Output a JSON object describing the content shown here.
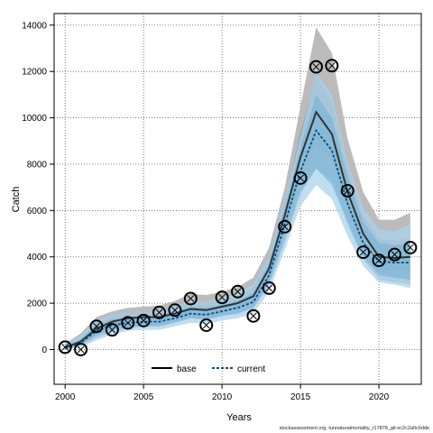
{
  "chart_data": {
    "type": "line",
    "xlabel": "Years",
    "ylabel": "Catch",
    "xlim": [
      1999.3,
      2022.7
    ],
    "ylim": [
      -1500,
      14500
    ],
    "x_ticks": [
      2000,
      2005,
      2010,
      2015,
      2020
    ],
    "y_ticks": [
      0,
      2000,
      4000,
      6000,
      8000,
      10000,
      12000,
      14000
    ],
    "grid": true,
    "legend_position": "bottom-center",
    "colors": {
      "base": "#333333",
      "current": "#0a4d7a",
      "base_outer_band": "#b4b4b4",
      "base_inner_band": "#8c8c8c",
      "current_outer_band": "#a9d3ee",
      "current_inner_band": "#6fb0d6"
    },
    "x": [
      2000,
      2001,
      2002,
      2003,
      2004,
      2005,
      2006,
      2007,
      2008,
      2009,
      2010,
      2011,
      2012,
      2013,
      2014,
      2015,
      2016,
      2017,
      2018,
      2019,
      2020,
      2021,
      2022
    ],
    "series": [
      {
        "name": "base",
        "style": "solid",
        "values": [
          80,
          350,
          900,
          1200,
          1350,
          1400,
          1400,
          1550,
          1750,
          1700,
          1850,
          2000,
          2300,
          3500,
          5800,
          8300,
          10250,
          9300,
          6800,
          5000,
          4000,
          3950,
          4000
        ],
        "band_outer_low": [
          0,
          150,
          500,
          750,
          900,
          1000,
          1000,
          1200,
          1350,
          1300,
          1450,
          1550,
          1800,
          2800,
          4600,
          6700,
          7800,
          7300,
          5400,
          3900,
          3000,
          2900,
          2800
        ],
        "band_outer_high": [
          250,
          700,
          1400,
          1650,
          1800,
          1850,
          1900,
          2100,
          2400,
          2350,
          2500,
          2700,
          3100,
          4400,
          7000,
          10500,
          13900,
          12800,
          9100,
          6800,
          5600,
          5600,
          5900
        ],
        "band_inner_low": [
          30,
          250,
          700,
          950,
          1100,
          1200,
          1200,
          1350,
          1550,
          1500,
          1650,
          1800,
          2050,
          3100,
          5100,
          7300,
          8800,
          8200,
          6000,
          4400,
          3500,
          3400,
          3400
        ],
        "band_inner_high": [
          160,
          500,
          1150,
          1450,
          1600,
          1650,
          1650,
          1850,
          2050,
          2000,
          2150,
          2300,
          2700,
          4000,
          6400,
          9400,
          11800,
          10700,
          7900,
          5800,
          4800,
          4700,
          4800
        ]
      },
      {
        "name": "current",
        "style": "dashed",
        "values": [
          60,
          300,
          800,
          1050,
          1150,
          1200,
          1200,
          1350,
          1550,
          1500,
          1650,
          1800,
          2050,
          3200,
          5400,
          7700,
          9450,
          8600,
          6300,
          4600,
          3800,
          3750,
          3750
        ],
        "band_outer_low": [
          0,
          100,
          400,
          650,
          800,
          850,
          850,
          1000,
          1150,
          1100,
          1250,
          1350,
          1550,
          2500,
          4300,
          6200,
          7100,
          6500,
          4900,
          3600,
          2900,
          2800,
          2650
        ],
        "band_outer_high": [
          220,
          600,
          1250,
          1500,
          1600,
          1650,
          1650,
          1850,
          2100,
          2050,
          2200,
          2400,
          2800,
          4000,
          6500,
          9200,
          11900,
          11000,
          8100,
          6100,
          5200,
          5100,
          5400
        ],
        "band_inner_low": [
          20,
          200,
          600,
          850,
          950,
          1000,
          1000,
          1150,
          1350,
          1300,
          1450,
          1550,
          1800,
          2800,
          4800,
          6800,
          7800,
          7100,
          5500,
          4000,
          3200,
          3100,
          3000
        ],
        "band_inner_high": [
          150,
          450,
          1050,
          1300,
          1400,
          1450,
          1450,
          1650,
          1850,
          1800,
          1950,
          2100,
          2450,
          3700,
          6100,
          8700,
          11000,
          10000,
          7500,
          5500,
          4600,
          4500,
          4600
        ]
      }
    ],
    "observed": {
      "x": [
        2000,
        2001,
        2002,
        2003,
        2004,
        2005,
        2006,
        2007,
        2008,
        2009,
        2010,
        2011,
        2012,
        2013,
        2014,
        2015,
        2016,
        2017,
        2018,
        2019,
        2020,
        2021,
        2022
      ],
      "values": [
        100,
        0,
        1000,
        850,
        1150,
        1250,
        1600,
        1700,
        2200,
        1050,
        2250,
        2500,
        1450,
        2650,
        5300,
        7400,
        12200,
        12250,
        6850,
        4200,
        3850,
        4100,
        4400
      ]
    }
  },
  "footer_text": "stockassessment.org, tunnaturalmortality_r17878_git:ec2c2a0c6dde"
}
